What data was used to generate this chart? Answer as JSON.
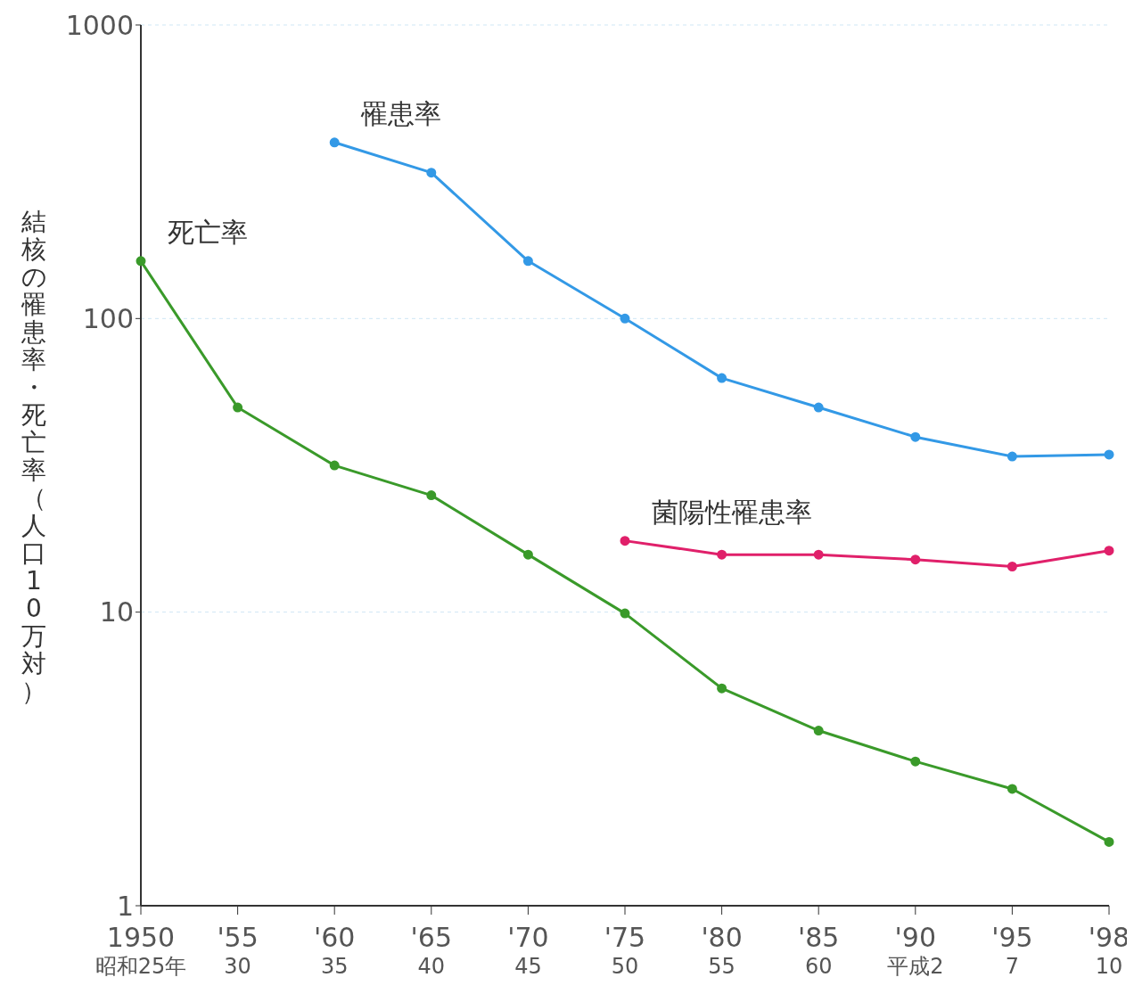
{
  "chart_data": {
    "type": "line",
    "ylabel": "結核の罹患率・死亡率（人口10万対）",
    "log": "y",
    "ylim": [
      1,
      1000
    ],
    "yticks": [
      1,
      10,
      100,
      1000
    ],
    "categories": [
      "1950\n昭和25年",
      "'55\n30",
      "'60\n35",
      "'65\n40",
      "'70\n45",
      "'75\n50",
      "'80\n55",
      "'85\n60",
      "'90\n平成2",
      "'95\n7",
      "'98\n10"
    ],
    "grid": "y",
    "marker": "circle",
    "line_style": "solid",
    "series": [
      {
        "name": "罹患率",
        "color": "#3399e6",
        "values": [
          null,
          null,
          398,
          314,
          157,
          100,
          62.7,
          49.8,
          39.5,
          33.9,
          34.4
        ]
      },
      {
        "name": "死亡率",
        "color": "#3a9a2a",
        "values": [
          157,
          49.8,
          31.6,
          25,
          15.7,
          9.9,
          5.5,
          3.95,
          3.1,
          2.5,
          1.65
        ]
      },
      {
        "name": "菌陽性罹患率",
        "color": "#e0206a",
        "values": [
          null,
          null,
          null,
          null,
          null,
          17.5,
          15.7,
          15.7,
          15.1,
          14.3,
          16.2
        ]
      }
    ]
  }
}
